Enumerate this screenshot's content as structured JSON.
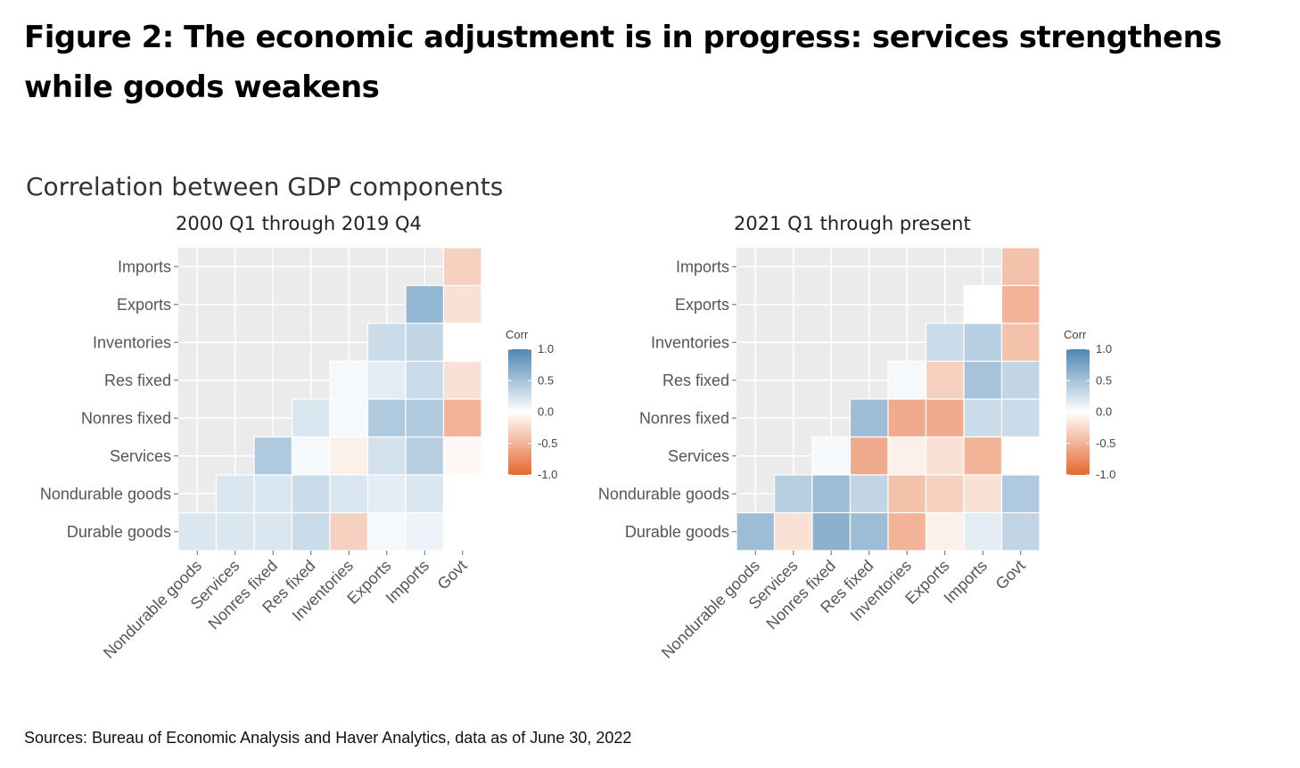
{
  "figure_title": "Figure 2: The economic adjustment is in progress: services strengthens while goods weakens",
  "sources": "Sources: Bureau of Economic Analysis and Haver Analytics, data as of June 30, 2022",
  "colors": {
    "positive": "#4d87b5",
    "negative": "#e4672e",
    "zero": "#ffffff",
    "panel": "#ebebeb"
  },
  "chart_data": [
    {
      "type": "heatmap",
      "title": "Correlation between GDP components",
      "subtitle": "2000 Q1 through 2019 Q4",
      "legend_title": "Corr",
      "legend_ticks": [
        "1.0",
        "0.5",
        "0.0",
        "-0.5",
        "-1.0"
      ],
      "legend_placement": "right",
      "range": [
        -1,
        1
      ],
      "rows": [
        "Imports",
        "Exports",
        "Inventories",
        "Res fixed",
        "Nonres fixed",
        "Services",
        "Nondurable goods",
        "Durable goods"
      ],
      "columns": [
        "Nondurable goods",
        "Services",
        "Nonres fixed",
        "Res fixed",
        "Inventories",
        "Exports",
        "Imports",
        "Govt"
      ],
      "values": [
        [
          null,
          null,
          null,
          null,
          null,
          null,
          null,
          -0.3
        ],
        [
          null,
          null,
          null,
          null,
          null,
          null,
          0.6,
          -0.2
        ],
        [
          null,
          null,
          null,
          null,
          null,
          0.3,
          0.35,
          0.0
        ],
        [
          null,
          null,
          null,
          null,
          0.05,
          0.15,
          0.3,
          -0.2
        ],
        [
          null,
          null,
          null,
          0.2,
          0.05,
          0.45,
          0.45,
          -0.5
        ],
        [
          null,
          null,
          0.45,
          0.05,
          -0.1,
          0.25,
          0.4,
          -0.05
        ],
        [
          null,
          0.2,
          0.2,
          0.3,
          0.2,
          0.15,
          0.2,
          0.0
        ],
        [
          0.2,
          0.2,
          0.2,
          0.3,
          -0.3,
          0.05,
          0.1,
          0.0
        ]
      ]
    },
    {
      "type": "heatmap",
      "subtitle": "2021 Q1 through present",
      "legend_title": "Corr",
      "legend_ticks": [
        "1.0",
        "0.5",
        "0.0",
        "-0.5",
        "-1.0"
      ],
      "legend_placement": "right",
      "range": [
        -1,
        1
      ],
      "rows": [
        "Imports",
        "Exports",
        "Inventories",
        "Res fixed",
        "Nonres fixed",
        "Services",
        "Nondurable goods",
        "Durable goods"
      ],
      "columns": [
        "Nondurable goods",
        "Services",
        "Nonres fixed",
        "Res fixed",
        "Inventories",
        "Exports",
        "Imports",
        "Govt"
      ],
      "values": [
        [
          null,
          null,
          null,
          null,
          null,
          null,
          null,
          -0.4
        ],
        [
          null,
          null,
          null,
          null,
          null,
          null,
          0.0,
          -0.5
        ],
        [
          null,
          null,
          null,
          null,
          null,
          0.3,
          0.4,
          -0.4
        ],
        [
          null,
          null,
          null,
          null,
          0.05,
          -0.3,
          0.5,
          0.35
        ],
        [
          null,
          null,
          null,
          0.55,
          -0.55,
          -0.55,
          0.3,
          0.3
        ],
        [
          null,
          null,
          0.05,
          -0.55,
          -0.1,
          -0.2,
          -0.5,
          0.0
        ],
        [
          null,
          0.4,
          0.55,
          0.35,
          -0.4,
          -0.3,
          -0.2,
          0.45
        ],
        [
          0.55,
          -0.2,
          0.65,
          0.55,
          -0.5,
          -0.1,
          0.15,
          0.35
        ]
      ]
    }
  ]
}
